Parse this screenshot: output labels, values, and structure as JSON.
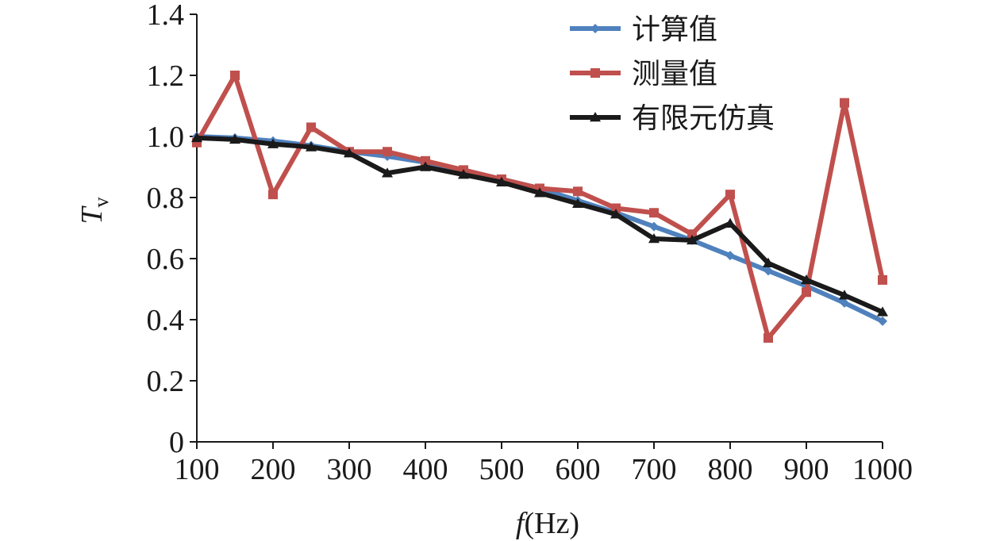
{
  "chart_data": {
    "type": "line",
    "x": [
      100,
      150,
      200,
      250,
      300,
      350,
      400,
      450,
      500,
      550,
      600,
      650,
      700,
      750,
      800,
      850,
      900,
      950,
      1000
    ],
    "xticks": [
      100,
      200,
      300,
      400,
      500,
      600,
      700,
      800,
      900,
      1000
    ],
    "yticks": [
      0,
      0.2,
      0.4,
      0.6,
      0.8,
      1.0,
      1.2,
      1.4
    ],
    "ytick_labels": [
      "0",
      "0.2",
      "0.4",
      "0.6",
      "0.8",
      "1.0",
      "1.2",
      "1.4"
    ],
    "xlim": [
      100,
      1000
    ],
    "ylim": [
      0,
      1.4
    ],
    "xlabel": {
      "var": "f",
      "unit": "(Hz)"
    },
    "ylabel": {
      "var": "T",
      "sub": "v"
    },
    "grid": false,
    "legend_position": "top-right",
    "series": [
      {
        "name": "计算值",
        "color": "#4f81bd",
        "marker": "diamond",
        "values": [
          1.0,
          0.995,
          0.985,
          0.97,
          0.95,
          0.935,
          0.915,
          0.89,
          0.86,
          0.83,
          0.79,
          0.75,
          0.705,
          0.66,
          0.61,
          0.56,
          0.51,
          0.455,
          0.395
        ]
      },
      {
        "name": "测量值",
        "color": "#c0504d",
        "marker": "square",
        "values": [
          0.98,
          1.2,
          0.81,
          1.03,
          0.95,
          0.95,
          0.92,
          0.89,
          0.86,
          0.83,
          0.82,
          0.765,
          0.75,
          0.68,
          0.81,
          0.34,
          0.49,
          1.11,
          0.53
        ]
      },
      {
        "name": "有限元仿真",
        "color": "#1a1a1a",
        "marker": "triangle",
        "values": [
          0.995,
          0.99,
          0.975,
          0.965,
          0.945,
          0.88,
          0.9,
          0.875,
          0.85,
          0.815,
          0.78,
          0.745,
          0.665,
          0.66,
          0.715,
          0.585,
          0.53,
          0.48,
          0.425
        ]
      }
    ]
  }
}
